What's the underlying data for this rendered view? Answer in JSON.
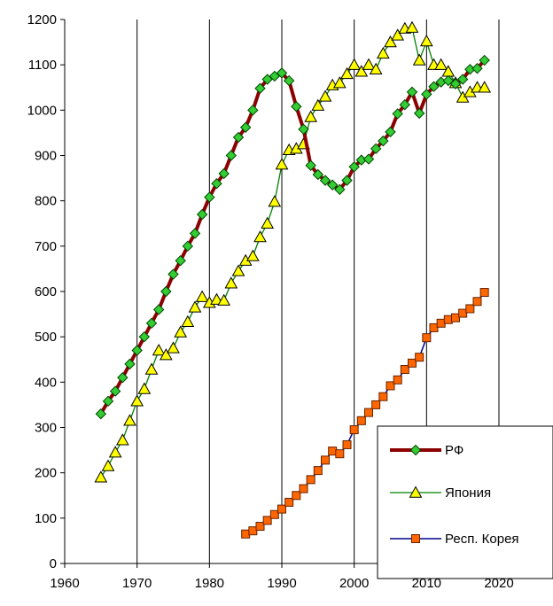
{
  "chart_data": {
    "type": "line",
    "title": "",
    "xlabel": "",
    "ylabel": "",
    "xlim": [
      1960,
      2020
    ],
    "ylim": [
      0,
      1200
    ],
    "x_ticks": [
      1960,
      1970,
      1980,
      1990,
      2000,
      2010,
      2020
    ],
    "y_ticks": [
      0,
      100,
      200,
      300,
      400,
      500,
      600,
      700,
      800,
      900,
      1000,
      1100,
      1200
    ],
    "grid": "vertical",
    "legend_position": "bottom-right",
    "series": [
      {
        "name": "РФ",
        "color": "#8b0000",
        "marker": "diamond",
        "marker_fill": "#33cc33",
        "x": [
          1965,
          1966,
          1967,
          1968,
          1969,
          1970,
          1971,
          1972,
          1973,
          1974,
          1975,
          1976,
          1977,
          1978,
          1979,
          1980,
          1981,
          1982,
          1983,
          1984,
          1985,
          1986,
          1987,
          1988,
          1989,
          1990,
          1991,
          1992,
          1993,
          1994,
          1995,
          1996,
          1997,
          1998,
          1999,
          2000,
          2001,
          2002,
          2003,
          2004,
          2005,
          2006,
          2007,
          2008,
          2009,
          2010,
          2011,
          2012,
          2013,
          2014,
          2015,
          2016,
          2017,
          2018
        ],
        "y": [
          330,
          358,
          380,
          410,
          440,
          470,
          500,
          530,
          560,
          600,
          638,
          668,
          700,
          728,
          770,
          808,
          838,
          860,
          900,
          940,
          962,
          1000,
          1048,
          1068,
          1075,
          1082,
          1065,
          1008,
          958,
          878,
          858,
          845,
          835,
          825,
          845,
          875,
          890,
          892,
          915,
          932,
          952,
          992,
          1012,
          1040,
          993,
          1035,
          1052,
          1062,
          1065,
          1058,
          1068,
          1090,
          1092,
          1110
        ]
      },
      {
        "name": "Япония",
        "color": "#008000",
        "marker": "triangle",
        "marker_fill": "#ffff00",
        "x": [
          1965,
          1966,
          1967,
          1968,
          1969,
          1970,
          1971,
          1972,
          1973,
          1974,
          1975,
          1976,
          1977,
          1978,
          1979,
          1980,
          1981,
          1982,
          1983,
          1984,
          1985,
          1986,
          1987,
          1988,
          1989,
          1990,
          1991,
          1992,
          1993,
          1994,
          1995,
          1996,
          1997,
          1998,
          1999,
          2000,
          2001,
          2002,
          2003,
          2004,
          2005,
          2006,
          2007,
          2008,
          2009,
          2010,
          2011,
          2012,
          2013,
          2014,
          2015,
          2016,
          2017,
          2018
        ],
        "y": [
          190,
          215,
          245,
          272,
          315,
          358,
          385,
          428,
          470,
          460,
          475,
          510,
          533,
          565,
          588,
          575,
          582,
          580,
          618,
          645,
          668,
          678,
          720,
          750,
          798,
          880,
          912,
          915,
          925,
          985,
          1010,
          1030,
          1055,
          1060,
          1080,
          1100,
          1085,
          1100,
          1090,
          1125,
          1150,
          1165,
          1180,
          1182,
          1110,
          1152,
          1100,
          1100,
          1085,
          1060,
          1028,
          1040,
          1050,
          1050
        ]
      },
      {
        "name": "Респ. Корея",
        "color": "#00008b",
        "marker": "square",
        "marker_fill": "#ff6600",
        "x": [
          1985,
          1986,
          1987,
          1988,
          1989,
          1990,
          1991,
          1992,
          1993,
          1994,
          1995,
          1996,
          1997,
          1998,
          1999,
          2000,
          2001,
          2002,
          2003,
          2004,
          2005,
          2006,
          2007,
          2008,
          2009,
          2010,
          2011,
          2012,
          2013,
          2014,
          2015,
          2016,
          2017,
          2018
        ],
        "y": [
          65,
          72,
          82,
          95,
          108,
          120,
          135,
          150,
          165,
          185,
          205,
          228,
          248,
          242,
          262,
          295,
          315,
          333,
          350,
          368,
          392,
          405,
          428,
          442,
          455,
          498,
          520,
          530,
          538,
          542,
          552,
          562,
          578,
          598
        ]
      }
    ]
  }
}
